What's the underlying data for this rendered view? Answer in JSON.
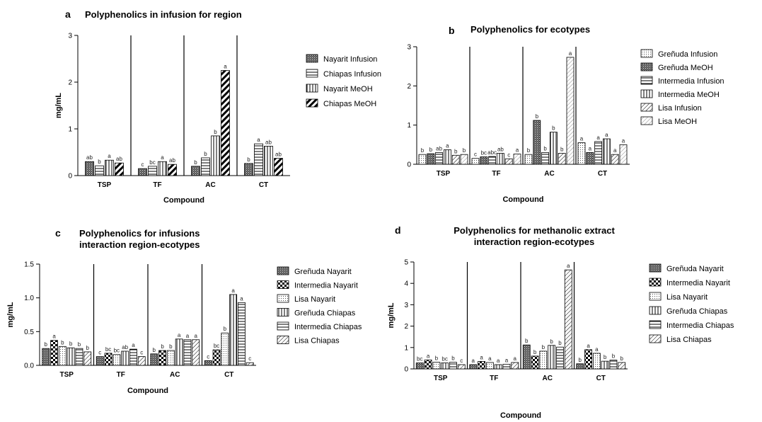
{
  "chart_data": [
    {
      "id": "a",
      "letter": "a",
      "type": "bar",
      "title_lines": [
        "Polyphenolics in infusion for region"
      ],
      "xlabel": "Compound",
      "ylabel": "mg/mL",
      "ylim": [
        0,
        3
      ],
      "yticks": [
        "0",
        "1",
        "2",
        "3"
      ],
      "categories": [
        "TSP",
        "TF",
        "AC",
        "CT"
      ],
      "series": [
        {
          "name": "Nayarit Infusion",
          "pattern": "dense",
          "values": [
            0.3,
            0.15,
            0.2,
            0.26
          ],
          "labels": [
            "ab",
            "c",
            "b",
            "b"
          ]
        },
        {
          "name": "Chiapas Infusion",
          "pattern": "hlines",
          "values": [
            0.21,
            0.2,
            0.38,
            0.68
          ],
          "labels": [
            "b",
            "bc",
            "b",
            "a"
          ]
        },
        {
          "name": "Nayarit MeOH",
          "pattern": "vlines",
          "values": [
            0.33,
            0.3,
            0.85,
            0.63
          ],
          "labels": [
            "a",
            "a",
            "b",
            "ab"
          ]
        },
        {
          "name": "Chiapas MeOH",
          "pattern": "diagthick",
          "values": [
            0.27,
            0.24,
            2.25,
            0.37
          ],
          "labels": [
            "ab",
            "ab",
            "a",
            "ab"
          ]
        }
      ]
    },
    {
      "id": "b",
      "letter": "b",
      "type": "bar",
      "title_lines": [
        "Polyphenolics for ecotypes"
      ],
      "xlabel": "Compound",
      "ylabel": "",
      "ylim": [
        0,
        3
      ],
      "yticks": [
        "0",
        "1",
        "2",
        "3"
      ],
      "categories": [
        "TSP",
        "TF",
        "AC",
        "CT"
      ],
      "series": [
        {
          "name": "Greñuda Infusion",
          "pattern": "dots",
          "values": [
            0.25,
            0.15,
            0.25,
            0.55
          ],
          "labels": [
            "b",
            "c",
            "b",
            "a"
          ]
        },
        {
          "name": "Greñuda MeOH",
          "pattern": "dense",
          "values": [
            0.27,
            0.19,
            1.12,
            0.3
          ],
          "labels": [
            "b",
            "bc",
            "b",
            "a"
          ]
        },
        {
          "name": "Intermedia Infusion",
          "pattern": "hlines",
          "values": [
            0.3,
            0.2,
            0.3,
            0.58
          ],
          "labels": [
            "ab",
            "abc",
            "b",
            "a"
          ]
        },
        {
          "name": "Intermedia MeOH",
          "pattern": "vlines",
          "values": [
            0.37,
            0.28,
            0.82,
            0.65
          ],
          "labels": [
            "a",
            "ab",
            "b",
            "a"
          ]
        },
        {
          "name": "Lisa Infusion",
          "pattern": "diagthin",
          "values": [
            0.23,
            0.14,
            0.28,
            0.25
          ],
          "labels": [
            "b",
            "c",
            "b",
            "a"
          ]
        },
        {
          "name": "Lisa MeOH",
          "pattern": "diaglight",
          "values": [
            0.25,
            0.26,
            2.73,
            0.5
          ],
          "labels": [
            "b",
            "a",
            "a",
            "a"
          ]
        }
      ]
    },
    {
      "id": "c",
      "letter": "c",
      "type": "bar",
      "title_lines": [
        "Polyphenolics for infusions",
        "interaction region-ecotypes"
      ],
      "xlabel": "Compound",
      "ylabel": "mg/mL",
      "ylim": [
        0,
        1.5
      ],
      "yticks": [
        "0.0",
        "0.5",
        "1.0",
        "1.5"
      ],
      "categories": [
        "TSP",
        "TF",
        "AC",
        "CT"
      ],
      "series": [
        {
          "name": "Greñuda Nayarit",
          "pattern": "dense",
          "values": [
            0.25,
            0.13,
            0.17,
            0.07
          ],
          "labels": [
            "b",
            "c",
            "b",
            "c"
          ]
        },
        {
          "name": "Intermedia Nayarit",
          "pattern": "checker",
          "values": [
            0.37,
            0.18,
            0.22,
            0.23
          ],
          "labels": [
            "a",
            "bc",
            "b",
            "bc"
          ]
        },
        {
          "name": "Lisa Nayarit",
          "pattern": "dots",
          "values": [
            0.28,
            0.16,
            0.22,
            0.48
          ],
          "labels": [
            "b",
            "bc",
            "b",
            "b"
          ]
        },
        {
          "name": "Greñuda Chiapas",
          "pattern": "vlines",
          "values": [
            0.26,
            0.21,
            0.39,
            1.05
          ],
          "labels": [
            "b",
            "ab",
            "a",
            "a"
          ]
        },
        {
          "name": "Intermedia Chiapas",
          "pattern": "hlines",
          "values": [
            0.25,
            0.24,
            0.38,
            0.93
          ],
          "labels": [
            "b",
            "a",
            "a",
            "a"
          ]
        },
        {
          "name": "Lisa Chiapas",
          "pattern": "diagthin",
          "values": [
            0.2,
            0.13,
            0.38,
            0.04
          ],
          "labels": [
            "b",
            "c",
            "a",
            "c"
          ]
        }
      ]
    },
    {
      "id": "d",
      "letter": "d",
      "type": "bar",
      "title_lines": [
        "Polyphenolics for methanolic extract",
        "interaction region-ecotypes"
      ],
      "xlabel": "Compound",
      "ylabel": "mg/mL",
      "ylim": [
        0,
        5
      ],
      "yticks": [
        "0",
        "1",
        "2",
        "3",
        "4",
        "5"
      ],
      "categories": [
        "TSP",
        "TF",
        "AC",
        "CT"
      ],
      "series": [
        {
          "name": "Greñuda Nayarit",
          "pattern": "dense",
          "values": [
            0.28,
            0.2,
            1.12,
            0.24
          ],
          "labels": [
            "bc",
            "a",
            "b",
            "b"
          ]
        },
        {
          "name": "Intermedia Nayarit",
          "pattern": "checker",
          "values": [
            0.42,
            0.35,
            0.6,
            0.9
          ],
          "labels": [
            "a",
            "a",
            "b",
            "a"
          ]
        },
        {
          "name": "Lisa Nayarit",
          "pattern": "dots",
          "values": [
            0.31,
            0.3,
            0.83,
            0.73
          ],
          "labels": [
            "b",
            "a",
            "b",
            "a"
          ]
        },
        {
          "name": "Greñuda Chiapas",
          "pattern": "vlines",
          "values": [
            0.28,
            0.2,
            1.1,
            0.36
          ],
          "labels": [
            "bc",
            "a",
            "b",
            "b"
          ]
        },
        {
          "name": "Intermedia Chiapas",
          "pattern": "hlines",
          "values": [
            0.31,
            0.22,
            1.02,
            0.41
          ],
          "labels": [
            "b",
            "a",
            "b",
            "b"
          ]
        },
        {
          "name": "Lisa Chiapas",
          "pattern": "diagthin",
          "values": [
            0.2,
            0.3,
            4.63,
            0.3
          ],
          "labels": [
            "c",
            "a",
            "a",
            "b"
          ]
        }
      ]
    }
  ]
}
